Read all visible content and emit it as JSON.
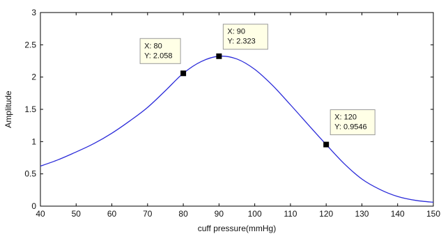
{
  "chart_data": {
    "type": "line",
    "title": "",
    "xlabel": "cuff pressure(mmHg)",
    "ylabel": "Amplitude",
    "xlim": [
      40,
      150
    ],
    "ylim": [
      0,
      3
    ],
    "x_ticks": [
      "40",
      "50",
      "60",
      "70",
      "80",
      "90",
      "100",
      "110",
      "120",
      "130",
      "140",
      "150"
    ],
    "y_ticks": [
      "0",
      "0.5",
      "1",
      "1.5",
      "2",
      "2.5",
      "3"
    ],
    "grid": false,
    "line_color": "#2b2bd9",
    "series": [
      {
        "x": [
          40,
          45,
          50,
          55,
          60,
          65,
          70,
          75,
          80,
          85,
          90,
          95,
          100,
          105,
          110,
          115,
          120,
          125,
          130,
          135,
          140,
          145,
          150
        ],
        "y": [
          0.62,
          0.72,
          0.84,
          0.97,
          1.13,
          1.32,
          1.53,
          1.79,
          2.058,
          2.24,
          2.323,
          2.28,
          2.12,
          1.87,
          1.57,
          1.26,
          0.9546,
          0.66,
          0.42,
          0.26,
          0.15,
          0.09,
          0.06
        ]
      }
    ],
    "datatips": [
      {
        "x": 80,
        "y": 2.058,
        "line1": "X: 80",
        "line2": "Y: 2.058"
      },
      {
        "x": 90,
        "y": 2.323,
        "line1": "X: 90",
        "line2": "Y: 2.323"
      },
      {
        "x": 120,
        "y": 0.9546,
        "line1": "X: 120",
        "line2": "Y: 0.9546"
      }
    ]
  }
}
